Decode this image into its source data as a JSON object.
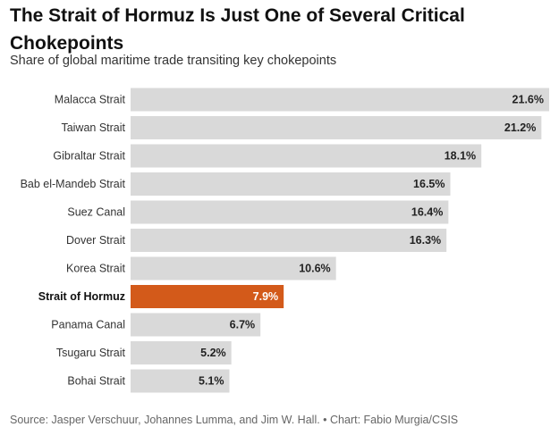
{
  "chart_data": {
    "type": "bar",
    "orientation": "horizontal",
    "title": "The Strait of Hormuz Is Just One of Several Critical Chokepoints",
    "subtitle": "Share of global maritime trade transiting key chokepoints",
    "categories": [
      "Malacca Strait",
      "Taiwan Strait",
      "Gibraltar Strait",
      "Bab el-Mandeb Strait",
      "Suez Canal",
      "Dover Strait",
      "Korea Strait",
      "Strait of Hormuz",
      "Panama Canal",
      "Tsugaru Strait",
      "Bohai Strait"
    ],
    "values": [
      21.6,
      21.2,
      18.1,
      16.5,
      16.4,
      16.3,
      10.6,
      7.9,
      6.7,
      5.2,
      5.1
    ],
    "value_labels": [
      "21.6%",
      "21.2%",
      "18.1%",
      "16.5%",
      "16.4%",
      "16.3%",
      "10.6%",
      "7.9%",
      "6.7%",
      "5.2%",
      "5.1%"
    ],
    "highlight": "Strait of Hormuz",
    "unit": "%",
    "xlim": [
      0,
      21.6
    ],
    "xlabel": "",
    "ylabel": "",
    "grid": false,
    "source": "Source: Jasper Verschuur, Johannes Lumma, and Jim W. Hall. • Chart: Fabio Murgia/CSIS"
  },
  "colors": {
    "bar_default": "#d9d9d9",
    "bar_highlight": "#d35a1a",
    "label_on_default": "#222222",
    "label_on_highlight": "#ffffff"
  }
}
